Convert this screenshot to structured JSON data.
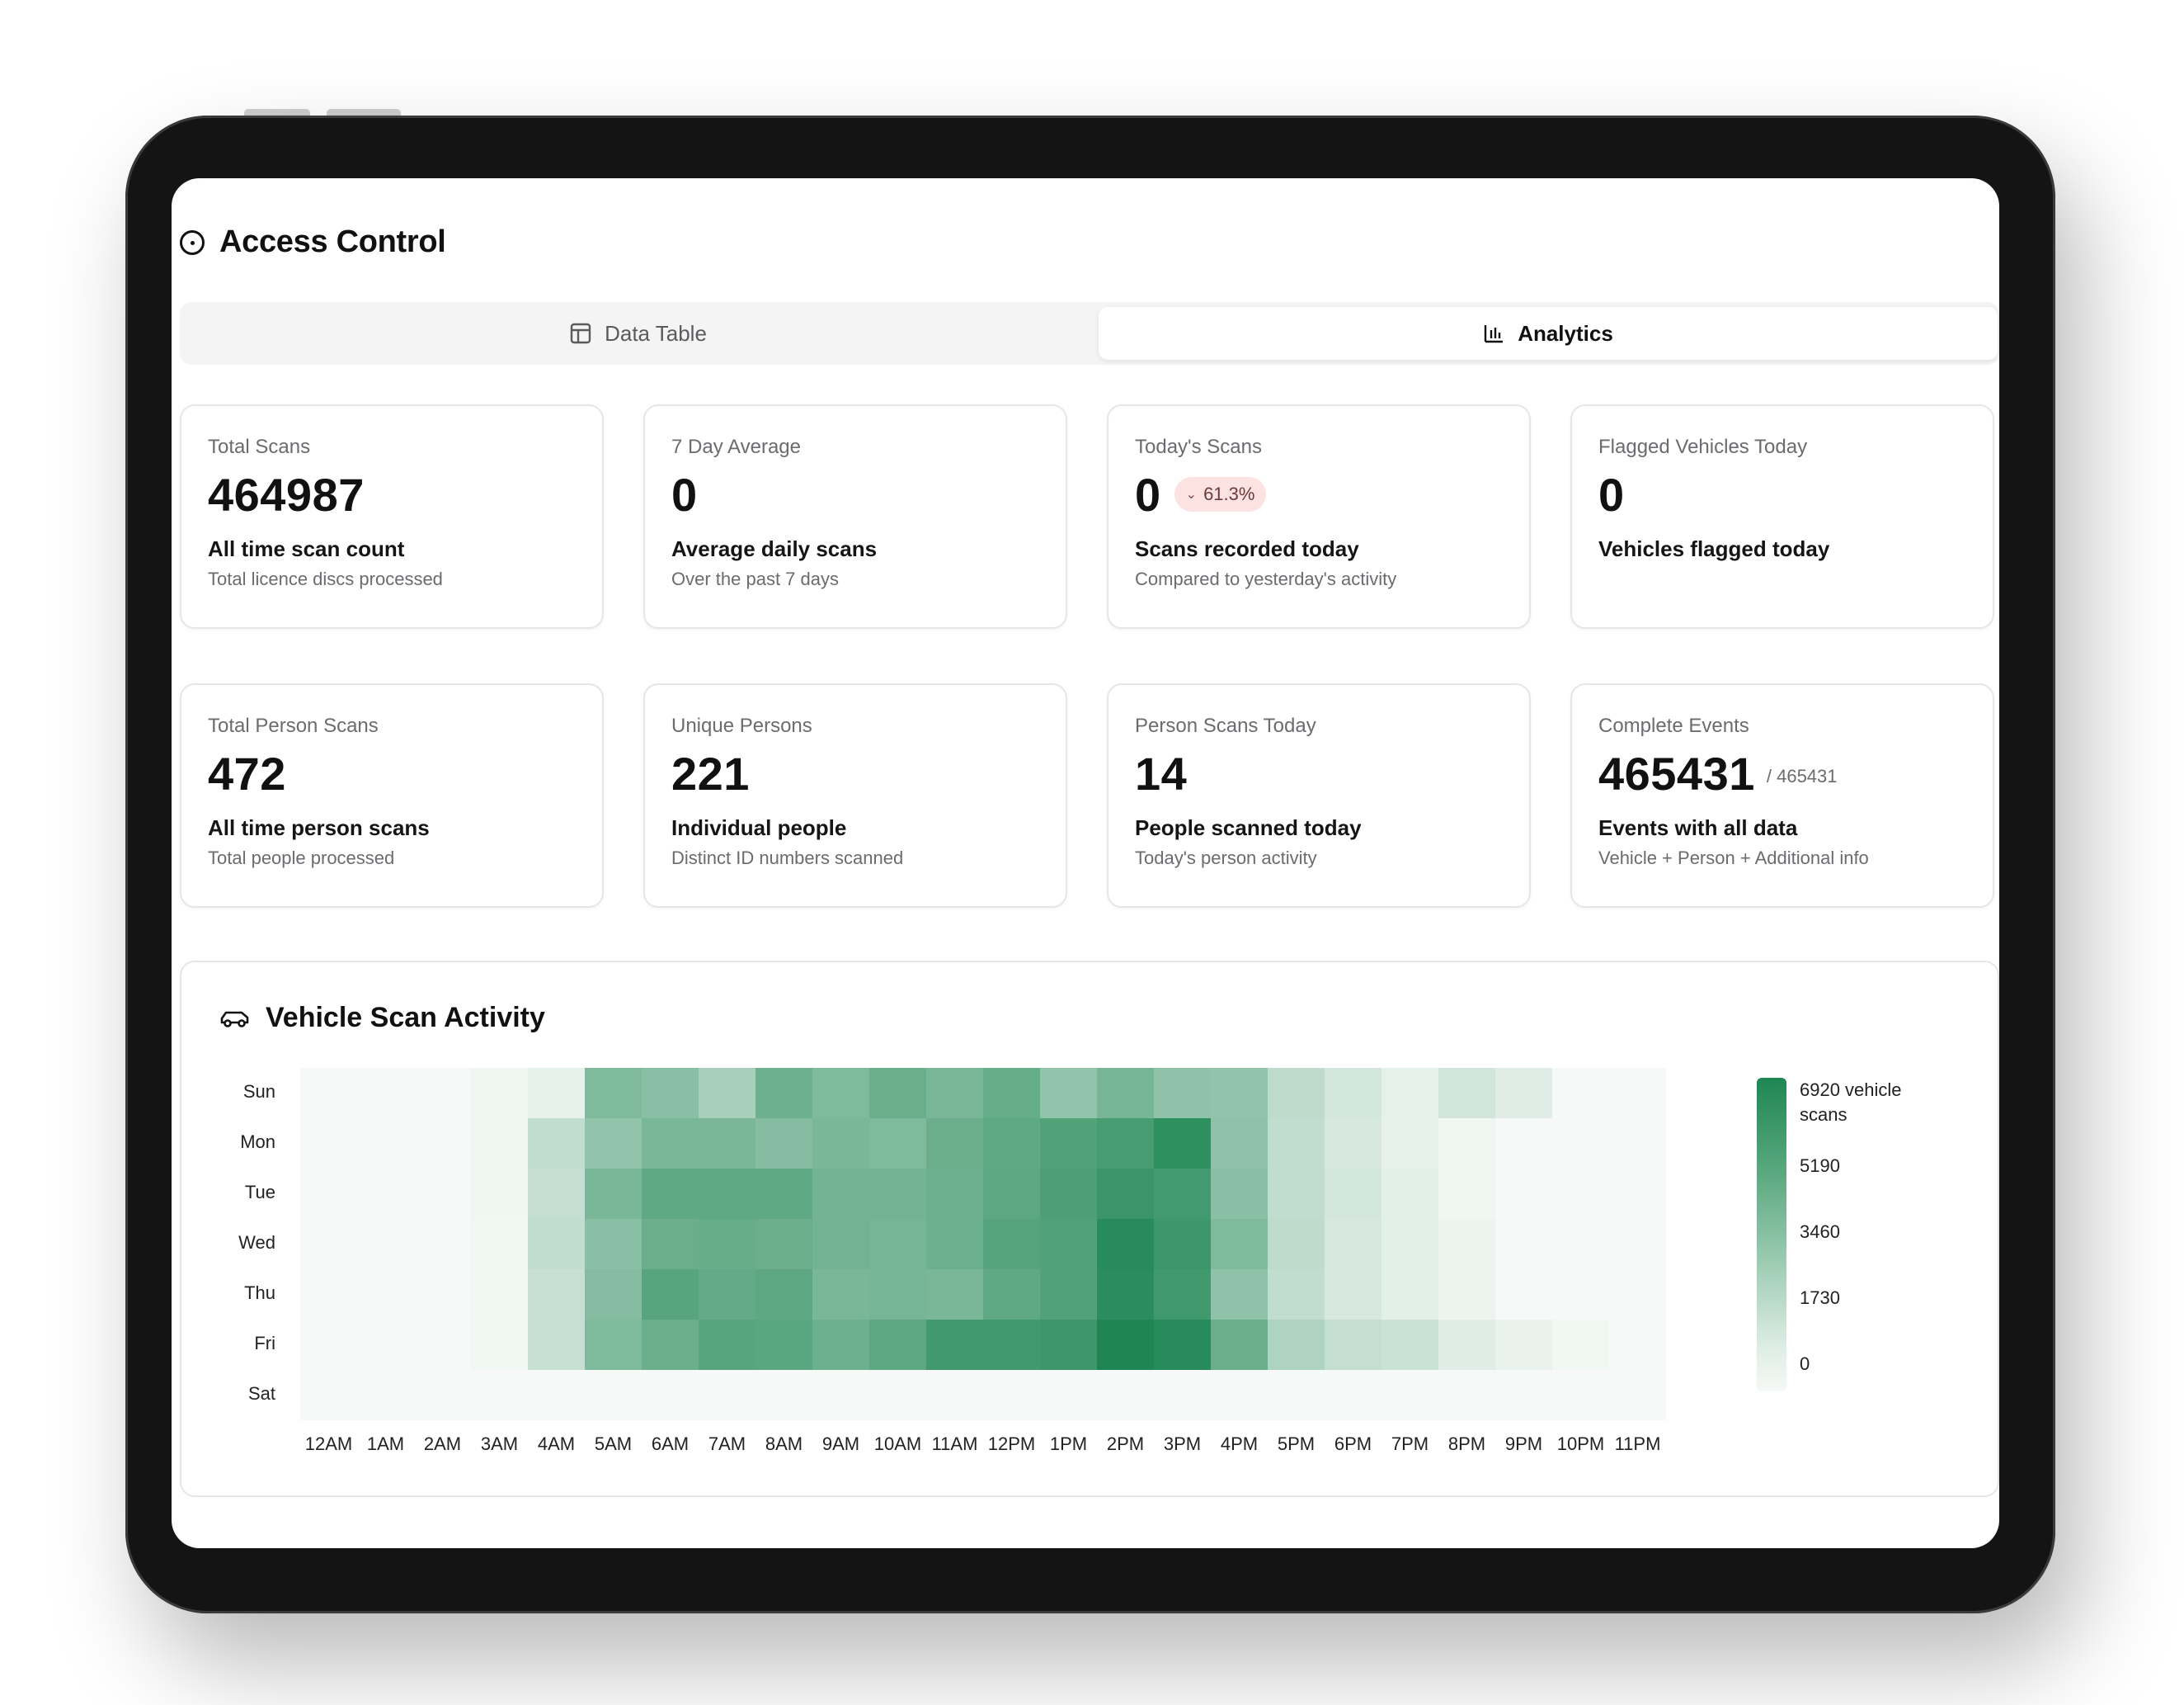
{
  "header": {
    "title": "Access Control"
  },
  "tabs": [
    {
      "label": "Data Table",
      "active": false
    },
    {
      "label": "Analytics",
      "active": true
    }
  ],
  "stats_row1": [
    {
      "label": "Total Scans",
      "value": "464987",
      "sub": "All time scan count",
      "desc": "Total licence discs processed"
    },
    {
      "label": "7 Day Average",
      "value": "0",
      "sub": "Average daily scans",
      "desc": "Over the past 7 days"
    },
    {
      "label": "Today's Scans",
      "value": "0",
      "badge": "61.3%",
      "sub": "Scans recorded today",
      "desc": "Compared to yesterday's activity"
    },
    {
      "label": "Flagged Vehicles Today",
      "value": "0",
      "sub": "Vehicles flagged today",
      "desc": ""
    }
  ],
  "stats_row2": [
    {
      "label": "Total Person Scans",
      "value": "472",
      "sub": "All time person scans",
      "desc": "Total people processed"
    },
    {
      "label": "Unique Persons",
      "value": "221",
      "sub": "Individual people",
      "desc": "Distinct ID numbers scanned"
    },
    {
      "label": "Person Scans Today",
      "value": "14",
      "sub": "People scanned today",
      "desc": "Today's person activity"
    },
    {
      "label": "Complete Events",
      "value": "465431",
      "outof": "/ 465431",
      "sub": "Events with all data",
      "desc": "Vehicle + Person + Additional info"
    }
  ],
  "activity": {
    "title": "Vehicle Scan Activity"
  },
  "colors": {
    "heat_max": "#1e8653",
    "heat_min": "#f6f9f7",
    "badge_bg": "#fde2e2"
  },
  "chart_data": {
    "type": "heatmap",
    "title": "Vehicle Scan Activity",
    "rows": [
      "Sun",
      "Mon",
      "Tue",
      "Wed",
      "Thu",
      "Fri",
      "Sat"
    ],
    "columns": [
      "12AM",
      "1AM",
      "2AM",
      "3AM",
      "4AM",
      "5AM",
      "6AM",
      "7AM",
      "8AM",
      "9AM",
      "10AM",
      "11AM",
      "12PM",
      "1PM",
      "2PM",
      "3PM",
      "4PM",
      "5PM",
      "6PM",
      "7PM",
      "8PM",
      "9PM",
      "10PM",
      "11PM"
    ],
    "values": [
      [
        0,
        0,
        0,
        200,
        500,
        3800,
        3500,
        2500,
        4400,
        3800,
        4500,
        4000,
        4600,
        3200,
        4100,
        3300,
        3200,
        1800,
        1100,
        500,
        1200,
        700,
        0,
        0
      ],
      [
        0,
        0,
        0,
        200,
        1700,
        3200,
        4000,
        4000,
        3600,
        4000,
        3800,
        4500,
        4800,
        5300,
        5600,
        6400,
        3300,
        1700,
        1000,
        500,
        200,
        0,
        0,
        0
      ],
      [
        0,
        0,
        0,
        200,
        1600,
        4000,
        4800,
        4800,
        4800,
        4200,
        4200,
        4400,
        4900,
        5400,
        6000,
        5700,
        3500,
        1700,
        1100,
        600,
        200,
        0,
        0,
        0
      ],
      [
        0,
        0,
        0,
        150,
        1700,
        3500,
        4500,
        4600,
        4500,
        4200,
        4100,
        4400,
        5200,
        5300,
        6600,
        5900,
        3800,
        1800,
        1000,
        600,
        300,
        0,
        0,
        0
      ],
      [
        0,
        0,
        0,
        150,
        1500,
        3600,
        5100,
        4700,
        4900,
        4000,
        4100,
        4000,
        4800,
        5300,
        6500,
        5800,
        3300,
        1700,
        1000,
        600,
        300,
        0,
        0,
        0
      ],
      [
        0,
        0,
        0,
        150,
        1500,
        3800,
        4500,
        5100,
        5000,
        4400,
        4900,
        5800,
        5800,
        5900,
        6900,
        6600,
        4500,
        2300,
        1600,
        1400,
        700,
        400,
        150,
        0
      ],
      [
        0,
        0,
        0,
        0,
        0,
        0,
        0,
        0,
        0,
        0,
        0,
        0,
        0,
        0,
        0,
        0,
        0,
        0,
        0,
        0,
        0,
        0,
        0,
        0
      ]
    ],
    "legend": {
      "title": "6920 vehicle scans",
      "ticks": [
        "5190",
        "3460",
        "1730",
        "0"
      ],
      "max": 6920,
      "min": 0
    }
  }
}
